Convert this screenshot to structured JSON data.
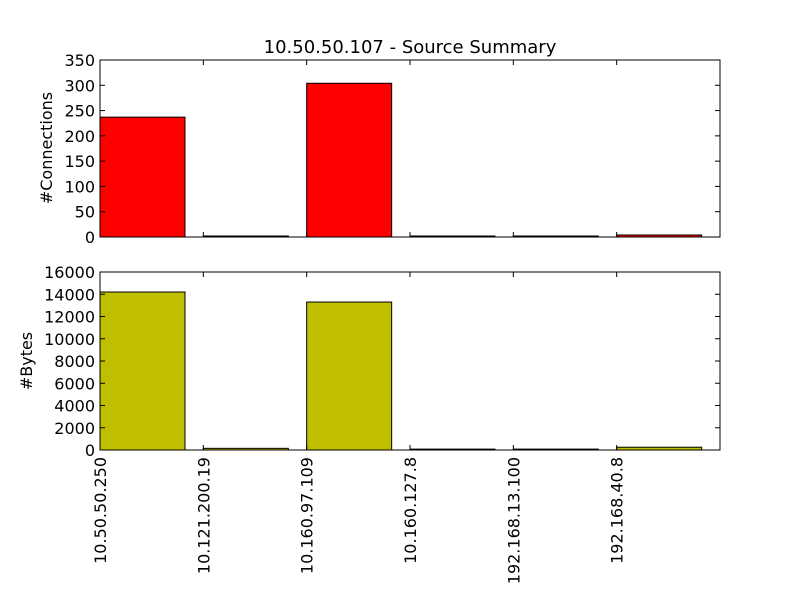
{
  "chart_data": [
    {
      "type": "bar",
      "title": "10.50.50.107 - Source Summary",
      "xlabel": "",
      "ylabel": "#Connections",
      "categories": [
        "10.50.50.250",
        "10.121.200.19",
        "10.160.97.109",
        "10.160.127.8",
        "192.168.13.100",
        "192.168.40.8"
      ],
      "series": [
        {
          "values": [
            237,
            2,
            304,
            2,
            2,
            4
          ]
        }
      ],
      "ylim": [
        0,
        350
      ],
      "yticks": [
        0,
        50,
        100,
        150,
        200,
        250,
        300,
        350
      ],
      "ytick_labels": [
        "0",
        "50",
        "100",
        "150",
        "200",
        "250",
        "300",
        "350"
      ],
      "bar_color": "#ff0000",
      "grid": false,
      "legend": "none"
    },
    {
      "type": "bar",
      "title": "",
      "xlabel": "",
      "ylabel": "#Bytes",
      "categories": [
        "10.50.50.250",
        "10.121.200.19",
        "10.160.97.109",
        "10.160.127.8",
        "192.168.13.100",
        "192.168.40.8"
      ],
      "series": [
        {
          "values": [
            14200,
            150,
            13300,
            80,
            80,
            250
          ]
        }
      ],
      "ylim": [
        0,
        16000
      ],
      "yticks": [
        0,
        2000,
        4000,
        6000,
        8000,
        10000,
        12000,
        14000,
        16000
      ],
      "ytick_labels": [
        "0",
        "2000",
        "4000",
        "6000",
        "8000",
        "10000",
        "12000",
        "14000",
        "16000"
      ],
      "bar_color": "#bfbf00",
      "grid": false,
      "legend": "none"
    }
  ]
}
